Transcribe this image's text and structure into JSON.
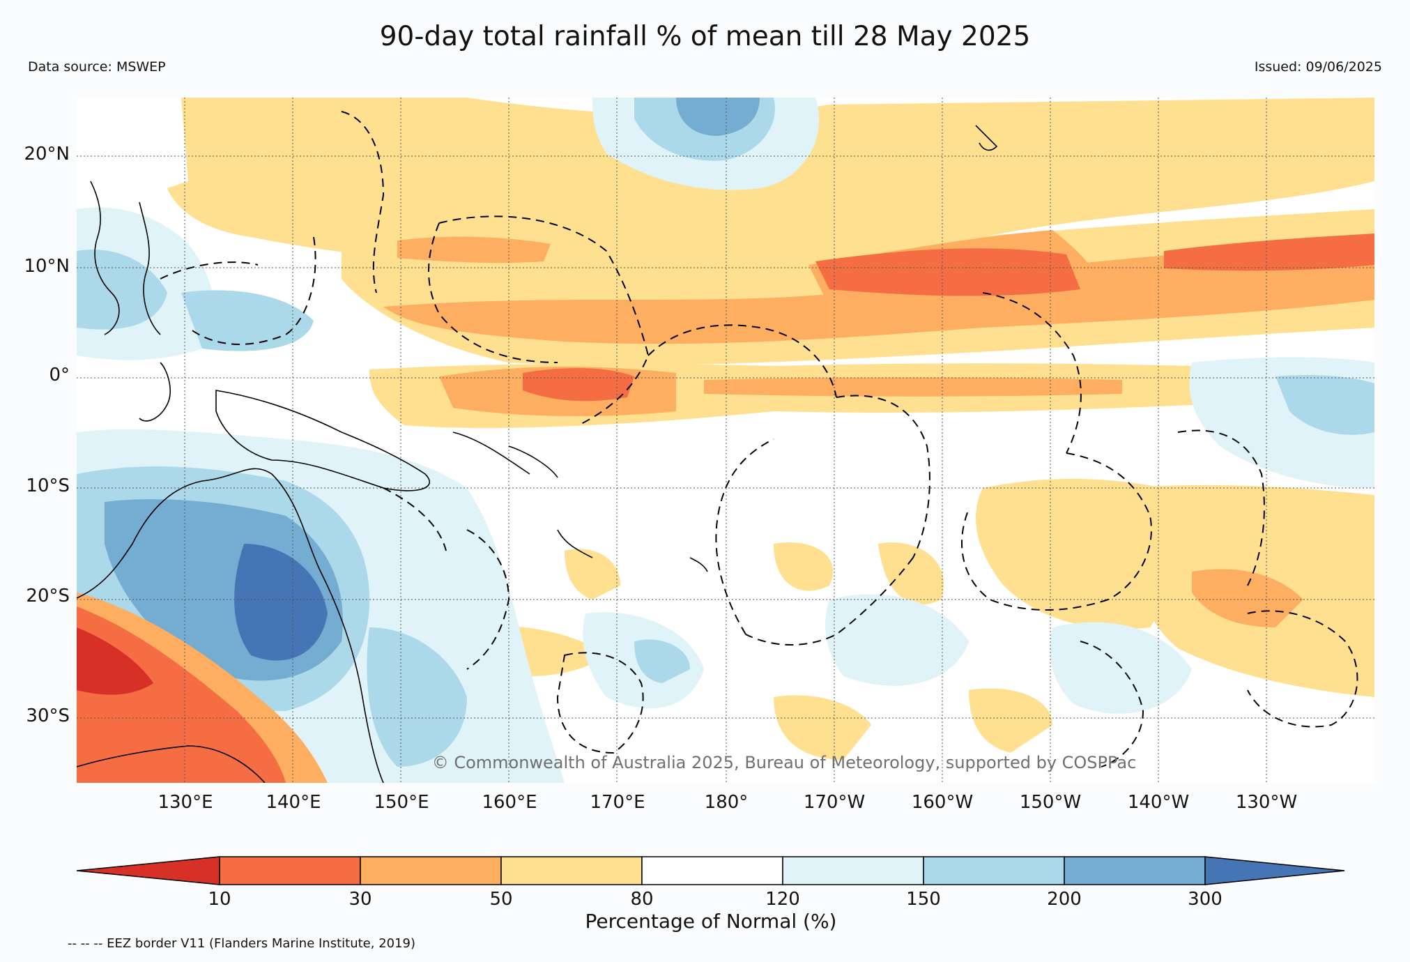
{
  "header": {
    "title": "90-day total rainfall % of mean till 28 May 2025",
    "data_source": "Data source: MSWEP",
    "issued": "Issued: 09/06/2025"
  },
  "map": {
    "lat_labels": [
      "20°N",
      "10°N",
      "0°",
      "10°S",
      "20°S",
      "30°S"
    ],
    "lon_labels": [
      "130°E",
      "140°E",
      "150°E",
      "160°E",
      "170°E",
      "180°",
      "170°W",
      "160°W",
      "150°W",
      "140°W",
      "130°W"
    ],
    "copyright": "© Commonwealth of Australia 2025, Bureau of Meteorology, supported by COSPPac"
  },
  "legend": {
    "title": "Percentage of Normal (%)",
    "ticks": [
      "10",
      "30",
      "50",
      "80",
      "120",
      "150",
      "200",
      "300"
    ],
    "colors": [
      "#d73027",
      "#f46d43",
      "#fdae61",
      "#fee090",
      "#ffffff",
      "#e0f3f8",
      "#abd9e9",
      "#74add1",
      "#4575b4"
    ],
    "eez_note": "-- -- -- EEZ border V11 (Flanders Marine Institute, 2019)"
  }
}
